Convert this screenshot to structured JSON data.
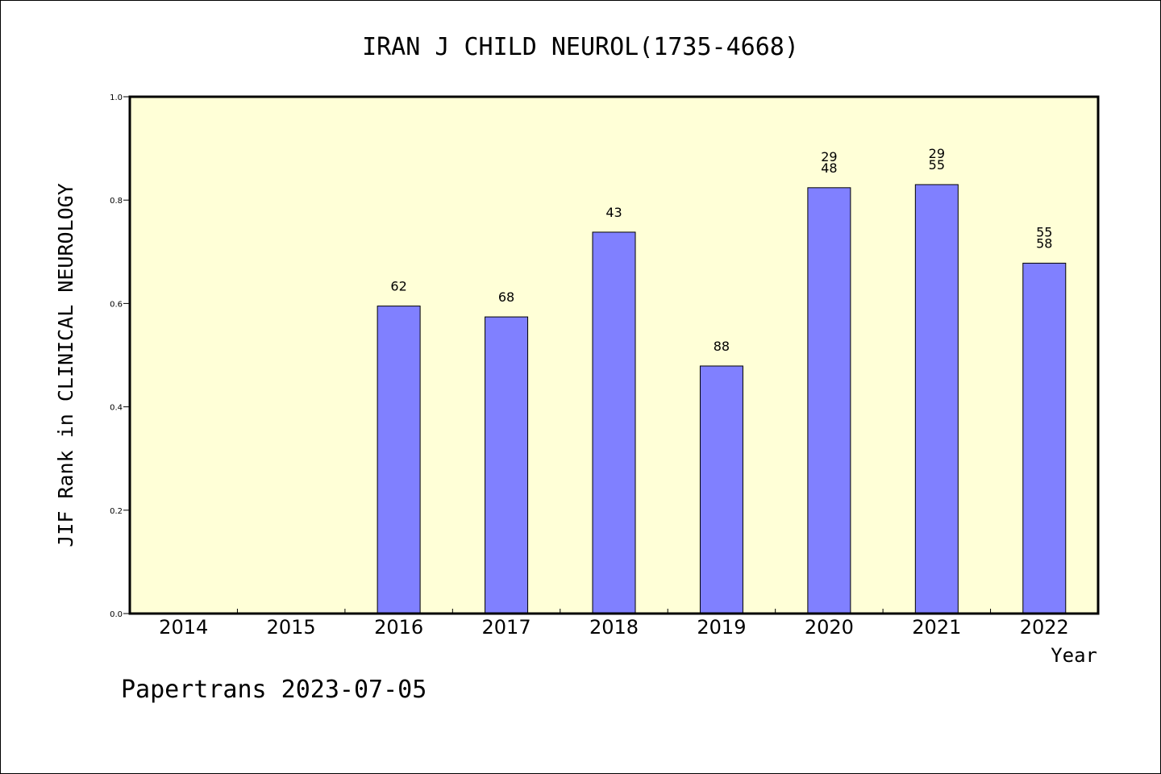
{
  "chart_data": {
    "type": "bar",
    "title": "IRAN J CHILD NEUROL(1735-4668)",
    "xlabel": "Year",
    "ylabel": "JIF Rank in CLINICAL NEUROLOGY",
    "categories": [
      "2014",
      "2015",
      "2016",
      "2017",
      "2018",
      "2019",
      "2020",
      "2021",
      "2022"
    ],
    "values": [
      null,
      null,
      0.595,
      0.574,
      0.738,
      0.479,
      0.824,
      0.83,
      0.678
    ],
    "data_labels": [
      [],
      [],
      [
        "62"
      ],
      [
        "68"
      ],
      [
        "43"
      ],
      [
        "88"
      ],
      [
        "29",
        "48"
      ],
      [
        "29",
        "55"
      ],
      [
        "55",
        "58"
      ]
    ],
    "yticks": [
      "0.0",
      "0.2",
      "0.4",
      "0.6",
      "0.8",
      "1.0"
    ],
    "ylim": [
      0,
      1.0
    ],
    "grid": false,
    "legend": "none",
    "colors": {
      "bar_fill": "#8080ff",
      "plot_background": "#ffffd7",
      "axis": "#000000"
    }
  },
  "footer": {
    "credit": "Papertrans 2023-07-05"
  }
}
